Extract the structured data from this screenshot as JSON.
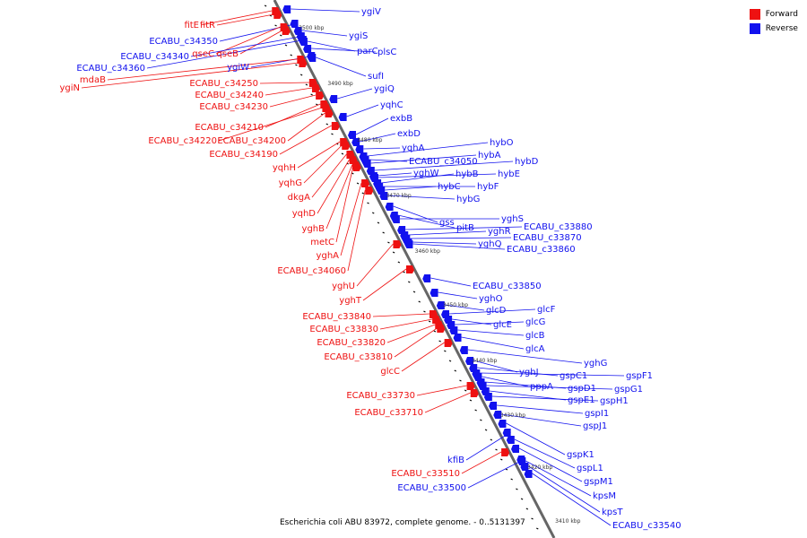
{
  "legend": {
    "forward_label": "Forward",
    "reverse_label": "Reverse",
    "forward_color": "#ee1111",
    "reverse_color": "#1111ee"
  },
  "caption": "Escherichia coli ABU 83972, complete genome. - 0..5131397",
  "ticks": [
    "3500 kbp",
    "3490 kbp",
    "3480 kbp",
    "3470 kbp",
    "3460 kbp",
    "3450 kbp",
    "3440 kbp",
    "3430 kbp",
    "3420 kbp",
    "3410 kbp"
  ],
  "genes": [
    {
      "label": "ygiV",
      "strand": "reverse"
    },
    {
      "label": "fitE",
      "strand": "forward"
    },
    {
      "label": "fitR",
      "strand": "forward"
    },
    {
      "label": "ygiS",
      "strand": "reverse"
    },
    {
      "label": "ECABU_c34350",
      "strand": "reverse"
    },
    {
      "label": "qseC",
      "strand": "forward"
    },
    {
      "label": "qseB",
      "strand": "forward"
    },
    {
      "label": "parC",
      "strand": "reverse"
    },
    {
      "label": "plsC",
      "strand": "reverse"
    },
    {
      "label": "ECABU_c34340",
      "strand": "reverse"
    },
    {
      "label": "ECABU_c34360",
      "strand": "reverse"
    },
    {
      "label": "ygiW",
      "strand": "reverse"
    },
    {
      "label": "mdaB",
      "strand": "forward"
    },
    {
      "label": "ygiN",
      "strand": "forward"
    },
    {
      "label": "sufI",
      "strand": "reverse"
    },
    {
      "label": "ECABU_c34250",
      "strand": "forward"
    },
    {
      "label": "ygiQ",
      "strand": "reverse"
    },
    {
      "label": "ECABU_c34240",
      "strand": "forward"
    },
    {
      "label": "ECABU_c34230",
      "strand": "forward"
    },
    {
      "label": "yqhC",
      "strand": "reverse"
    },
    {
      "label": "exbB",
      "strand": "reverse"
    },
    {
      "label": "ECABU_c34210",
      "strand": "forward"
    },
    {
      "label": "exbD",
      "strand": "reverse"
    },
    {
      "label": "ECABU_c34220",
      "strand": "forward"
    },
    {
      "label": "ECABU_c34200",
      "strand": "forward"
    },
    {
      "label": "hybO",
      "strand": "reverse"
    },
    {
      "label": "yqhA",
      "strand": "reverse"
    },
    {
      "label": "ECABU_c34190",
      "strand": "forward"
    },
    {
      "label": "hybA",
      "strand": "reverse"
    },
    {
      "label": "ECABU_c34050",
      "strand": "reverse"
    },
    {
      "label": "hybD",
      "strand": "reverse"
    },
    {
      "label": "yqhH",
      "strand": "forward"
    },
    {
      "label": "yghW",
      "strand": "reverse"
    },
    {
      "label": "hybB",
      "strand": "reverse"
    },
    {
      "label": "hybE",
      "strand": "reverse"
    },
    {
      "label": "yqhG",
      "strand": "forward"
    },
    {
      "label": "hybC",
      "strand": "reverse"
    },
    {
      "label": "hybF",
      "strand": "reverse"
    },
    {
      "label": "dkgA",
      "strand": "forward"
    },
    {
      "label": "hybG",
      "strand": "reverse"
    },
    {
      "label": "yqhD",
      "strand": "forward"
    },
    {
      "label": "yghS",
      "strand": "reverse"
    },
    {
      "label": "gss",
      "strand": "reverse"
    },
    {
      "label": "ECABU_c33880",
      "strand": "reverse"
    },
    {
      "label": "yghB",
      "strand": "forward"
    },
    {
      "label": "pitB",
      "strand": "reverse"
    },
    {
      "label": "yghR",
      "strand": "reverse"
    },
    {
      "label": "ECABU_c33870",
      "strand": "reverse"
    },
    {
      "label": "metC",
      "strand": "forward"
    },
    {
      "label": "yghQ",
      "strand": "reverse"
    },
    {
      "label": "ECABU_c33860",
      "strand": "reverse"
    },
    {
      "label": "yghA",
      "strand": "forward"
    },
    {
      "label": "ECABU_c34060",
      "strand": "forward"
    },
    {
      "label": "yghU",
      "strand": "forward"
    },
    {
      "label": "ECABU_c33850",
      "strand": "reverse"
    },
    {
      "label": "yghT",
      "strand": "forward"
    },
    {
      "label": "yghO",
      "strand": "reverse"
    },
    {
      "label": "glcD",
      "strand": "reverse"
    },
    {
      "label": "glcF",
      "strand": "reverse"
    },
    {
      "label": "ECABU_c33840",
      "strand": "forward"
    },
    {
      "label": "glcE",
      "strand": "reverse"
    },
    {
      "label": "glcG",
      "strand": "reverse"
    },
    {
      "label": "ECABU_c33830",
      "strand": "forward"
    },
    {
      "label": "glcB",
      "strand": "reverse"
    },
    {
      "label": "ECABU_c33820",
      "strand": "forward"
    },
    {
      "label": "glcA",
      "strand": "reverse"
    },
    {
      "label": "ECABU_c33810",
      "strand": "forward"
    },
    {
      "label": "yghG",
      "strand": "reverse"
    },
    {
      "label": "glcC",
      "strand": "forward"
    },
    {
      "label": "yghJ",
      "strand": "reverse"
    },
    {
      "label": "gspC1",
      "strand": "reverse"
    },
    {
      "label": "gspF1",
      "strand": "reverse"
    },
    {
      "label": "pppA",
      "strand": "reverse"
    },
    {
      "label": "gspD1",
      "strand": "reverse"
    },
    {
      "label": "gspG1",
      "strand": "reverse"
    },
    {
      "label": "ECABU_c33730",
      "strand": "forward"
    },
    {
      "label": "gspE1",
      "strand": "reverse"
    },
    {
      "label": "gspH1",
      "strand": "reverse"
    },
    {
      "label": "gspI1",
      "strand": "reverse"
    },
    {
      "label": "ECABU_c33710",
      "strand": "forward"
    },
    {
      "label": "gspJ1",
      "strand": "reverse"
    },
    {
      "label": "gspK1",
      "strand": "reverse"
    },
    {
      "label": "kfiB",
      "strand": "reverse"
    },
    {
      "label": "gspL1",
      "strand": "reverse"
    },
    {
      "label": "ECABU_c33510",
      "strand": "forward"
    },
    {
      "label": "gspM1",
      "strand": "reverse"
    },
    {
      "label": "ECABU_c33500",
      "strand": "reverse"
    },
    {
      "label": "kpsM",
      "strand": "reverse"
    },
    {
      "label": "kpsT",
      "strand": "reverse"
    },
    {
      "label": "ECABU_c33540",
      "strand": "reverse"
    }
  ]
}
